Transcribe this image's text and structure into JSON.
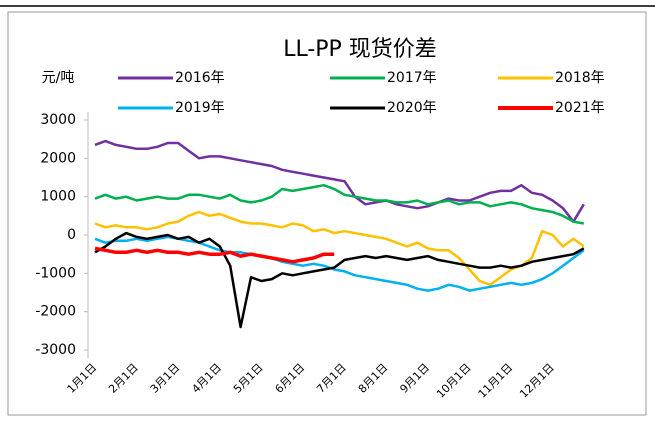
{
  "chart_data": {
    "type": "line",
    "title": "LL-PP 现货价差",
    "y_label": "元/吨",
    "categories": [
      "1月1日",
      null,
      null,
      null,
      "2月1日",
      null,
      null,
      null,
      "3月1日",
      null,
      null,
      null,
      "4月1日",
      null,
      null,
      null,
      "5月1日",
      null,
      null,
      null,
      "6月1日",
      null,
      null,
      null,
      "7月1日",
      null,
      null,
      null,
      "8月1日",
      null,
      null,
      null,
      "9月1日",
      null,
      null,
      null,
      "10月1日",
      null,
      null,
      null,
      "11月1日",
      null,
      null,
      null,
      "12月1日",
      null,
      null,
      null
    ],
    "ylim": [
      -3000,
      3000
    ],
    "yticks": [
      3000,
      2000,
      1000,
      0,
      -1000,
      -2000,
      -3000
    ],
    "grid": false,
    "legend": "top",
    "series": [
      {
        "name": "2016年",
        "color": "#7030a0",
        "values": [
          2350,
          2450,
          2350,
          2300,
          2250,
          2250,
          2300,
          2400,
          2400,
          2200,
          2000,
          2050,
          2050,
          2000,
          1950,
          1900,
          1850,
          1800,
          1700,
          1650,
          1600,
          1550,
          1500,
          1450,
          1400,
          1000,
          800,
          850,
          900,
          800,
          750,
          700,
          750,
          850,
          950,
          900,
          900,
          1000,
          1100,
          1150,
          1150,
          1300,
          1100,
          1050,
          900,
          700,
          350,
          800
        ]
      },
      {
        "name": "2017年",
        "color": "#00b050",
        "values": [
          950,
          1050,
          950,
          1000,
          900,
          950,
          1000,
          950,
          950,
          1050,
          1050,
          1000,
          950,
          1050,
          900,
          850,
          900,
          1000,
          1200,
          1150,
          1200,
          1250,
          1300,
          1200,
          1050,
          1000,
          950,
          900,
          900,
          850,
          850,
          900,
          800,
          850,
          900,
          800,
          850,
          850,
          750,
          800,
          850,
          800,
          700,
          650,
          600,
          500,
          350,
          300
        ]
      },
      {
        "name": "2018年",
        "color": "#ffc000",
        "values": [
          300,
          200,
          250,
          200,
          200,
          150,
          200,
          300,
          350,
          500,
          600,
          500,
          550,
          450,
          350,
          300,
          300,
          250,
          200,
          300,
          250,
          100,
          150,
          50,
          100,
          50,
          0,
          -50,
          -100,
          -200,
          -300,
          -200,
          -350,
          -400,
          -400,
          -600,
          -900,
          -1200,
          -1300,
          -1100,
          -900,
          -800,
          -600,
          100,
          0,
          -300,
          -100,
          -300
        ]
      },
      {
        "name": "2019年",
        "color": "#00b0f0",
        "values": [
          -100,
          -200,
          -150,
          -150,
          -100,
          -150,
          -100,
          -50,
          -100,
          -150,
          -200,
          -300,
          -400,
          -450,
          -450,
          -500,
          -550,
          -600,
          -700,
          -750,
          -800,
          -750,
          -800,
          -900,
          -950,
          -1050,
          -1100,
          -1150,
          -1200,
          -1250,
          -1300,
          -1400,
          -1450,
          -1400,
          -1300,
          -1350,
          -1450,
          -1400,
          -1350,
          -1300,
          -1250,
          -1300,
          -1250,
          -1150,
          -1000,
          -800,
          -600,
          -400
        ]
      },
      {
        "name": "2020年",
        "color": "#000000",
        "values": [
          -450,
          -300,
          -100,
          50,
          -50,
          -100,
          -50,
          0,
          -100,
          -50,
          -200,
          -100,
          -300,
          -800,
          -2400,
          -1100,
          -1200,
          -1150,
          -1000,
          -1050,
          -1000,
          -950,
          -900,
          -850,
          -650,
          -600,
          -550,
          -600,
          -550,
          -600,
          -650,
          -600,
          -550,
          -650,
          -700,
          -750,
          -800,
          -850,
          -850,
          -800,
          -850,
          -800,
          -700,
          -650,
          -600,
          -550,
          -500,
          -350
        ]
      },
      {
        "name": "2021年",
        "color": "#ff0000",
        "values": [
          -350,
          -400,
          -450,
          -450,
          -400,
          -450,
          -400,
          -450,
          -450,
          -500,
          -450,
          -500,
          -500,
          -450,
          -550,
          -500,
          -550,
          -600,
          -650,
          -700,
          -650,
          -600,
          -500,
          -500,
          null,
          null,
          null,
          null,
          null,
          null,
          null,
          null,
          null,
          null,
          null,
          null,
          null,
          null,
          null,
          null,
          null,
          null,
          null,
          null,
          null,
          null,
          null,
          null
        ]
      }
    ]
  }
}
